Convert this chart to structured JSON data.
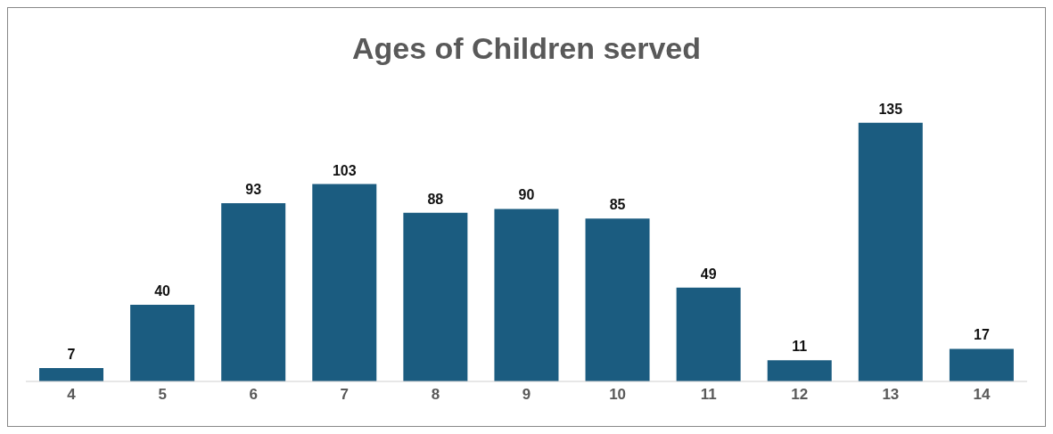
{
  "chart_data": {
    "type": "bar",
    "title": "Ages of Children served",
    "categories": [
      "4",
      "5",
      "6",
      "7",
      "8",
      "9",
      "10",
      "11",
      "12",
      "13",
      "14"
    ],
    "values": [
      7,
      40,
      93,
      103,
      88,
      90,
      85,
      49,
      11,
      135,
      17
    ],
    "color": "#1b5c80",
    "data_labels": true,
    "grid": false,
    "legend": false
  }
}
